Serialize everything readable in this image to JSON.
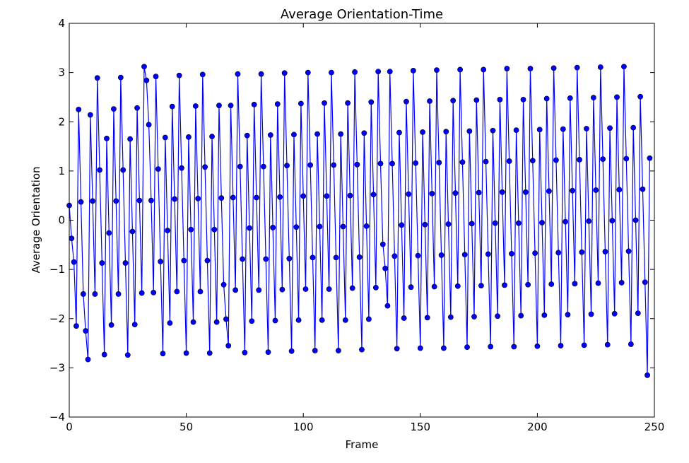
{
  "chart_data": {
    "type": "line",
    "title": "Average Orientation-Time",
    "xlabel": "Frame",
    "ylabel": "Average Orientation",
    "xlim": [
      0,
      250
    ],
    "ylim": [
      -4,
      4
    ],
    "xticks": [
      0,
      50,
      100,
      150,
      200,
      250
    ],
    "yticks": [
      -4,
      -3,
      -2,
      -1,
      0,
      1,
      2,
      3,
      4
    ],
    "xtick_labels": [
      "0",
      "50",
      "100",
      "150",
      "200",
      "250"
    ],
    "ytick_labels": [
      "−4",
      "−3",
      "−2",
      "−1",
      "0",
      "1",
      "2",
      "3",
      "4"
    ],
    "grid": false,
    "legend": "none",
    "colors": {
      "line": "#0000ff",
      "marker_fill": "#0000ff",
      "marker_edge": "#000000"
    },
    "series": [
      {
        "marker": "circle",
        "x": [
          0,
          1,
          2,
          3,
          4,
          5,
          6,
          7,
          8,
          9,
          10,
          11,
          12,
          13,
          14,
          15,
          16,
          17,
          18,
          19,
          20,
          21,
          22,
          23,
          24,
          25,
          26,
          27,
          28,
          29,
          30,
          31,
          32,
          33,
          34,
          35,
          36,
          37,
          38,
          39,
          40,
          41,
          42,
          43,
          44,
          45,
          46,
          47,
          48,
          49,
          50,
          51,
          52,
          53,
          54,
          55,
          56,
          57,
          58,
          59,
          60,
          61,
          62,
          63,
          64,
          65,
          66,
          67,
          68,
          69,
          70,
          71,
          72,
          73,
          74,
          75,
          76,
          77,
          78,
          79,
          80,
          81,
          82,
          83,
          84,
          85,
          86,
          87,
          88,
          89,
          90,
          91,
          92,
          93,
          94,
          95,
          96,
          97,
          98,
          99,
          100,
          101,
          102,
          103,
          104,
          105,
          106,
          107,
          108,
          109,
          110,
          111,
          112,
          113,
          114,
          115,
          116,
          117,
          118,
          119,
          120,
          121,
          122,
          123,
          124,
          125,
          126,
          127,
          128,
          129,
          130,
          131,
          132,
          133,
          134,
          135,
          136,
          137,
          138,
          139,
          140,
          141,
          142,
          143,
          144,
          145,
          146,
          147,
          148,
          149,
          150,
          151,
          152,
          153,
          154,
          155,
          156,
          157,
          158,
          159,
          160,
          161,
          162,
          163,
          164,
          165,
          166,
          167,
          168,
          169,
          170,
          171,
          172,
          173,
          174,
          175,
          176,
          177,
          178,
          179,
          180,
          181,
          182,
          183,
          184,
          185,
          186,
          187,
          188,
          189,
          190,
          191,
          192,
          193,
          194,
          195,
          196,
          197,
          198,
          199,
          200,
          201,
          202,
          203,
          204,
          205,
          206,
          207,
          208,
          209,
          210,
          211,
          212,
          213,
          214,
          215,
          216,
          217,
          218,
          219,
          220,
          221,
          222,
          223,
          224,
          225,
          226,
          227,
          228,
          229,
          230,
          231,
          232,
          233,
          234,
          235,
          236,
          237,
          238,
          239,
          240,
          241,
          242,
          243,
          244,
          245,
          246,
          247,
          248
        ],
        "y": [
          0.3,
          -0.37,
          -0.85,
          -2.15,
          2.25,
          0.37,
          -1.5,
          -2.25,
          -2.83,
          2.14,
          0.39,
          -1.5,
          2.89,
          1.02,
          -0.87,
          -2.73,
          1.66,
          -0.26,
          -2.13,
          2.26,
          0.39,
          -1.5,
          2.9,
          1.02,
          -0.87,
          -2.74,
          1.65,
          -0.23,
          -2.12,
          2.28,
          0.4,
          -1.48,
          3.12,
          2.84,
          1.94,
          0.4,
          -1.47,
          2.92,
          1.04,
          -0.84,
          -2.71,
          1.68,
          -0.21,
          -2.09,
          2.31,
          0.43,
          -1.45,
          2.94,
          1.06,
          -0.82,
          -2.7,
          1.69,
          -0.19,
          -2.07,
          2.32,
          0.44,
          -1.45,
          2.96,
          1.08,
          -0.82,
          -2.7,
          1.7,
          -0.19,
          -2.07,
          2.33,
          0.45,
          -1.31,
          -2.01,
          -2.55,
          2.33,
          0.46,
          -1.42,
          2.97,
          1.09,
          -0.79,
          -2.69,
          1.72,
          -0.16,
          -2.05,
          2.35,
          0.46,
          -1.42,
          2.97,
          1.09,
          -0.79,
          -2.68,
          1.73,
          -0.15,
          -2.04,
          2.36,
          0.47,
          -1.41,
          2.99,
          1.11,
          -0.78,
          -2.66,
          1.74,
          -0.14,
          -2.03,
          2.37,
          0.49,
          -1.4,
          3.0,
          1.12,
          -0.76,
          -2.65,
          1.75,
          -0.13,
          -2.03,
          2.38,
          0.49,
          -1.4,
          3.0,
          1.12,
          -0.76,
          -2.65,
          1.75,
          -0.13,
          -2.03,
          2.38,
          0.5,
          -1.38,
          3.01,
          1.13,
          -0.75,
          -2.63,
          1.77,
          -0.12,
          -2.01,
          2.4,
          0.52,
          -1.37,
          3.02,
          1.15,
          -0.49,
          -0.98,
          -1.74,
          3.02,
          1.15,
          -0.73,
          -2.61,
          1.78,
          -0.1,
          -1.99,
          2.41,
          0.53,
          -1.36,
          3.04,
          1.16,
          -0.72,
          -2.6,
          1.79,
          -0.09,
          -1.98,
          2.42,
          0.54,
          -1.35,
          3.05,
          1.17,
          -0.71,
          -2.6,
          1.8,
          -0.08,
          -1.97,
          2.43,
          0.55,
          -1.34,
          3.06,
          1.18,
          -0.7,
          -2.58,
          1.81,
          -0.07,
          -1.96,
          2.44,
          0.56,
          -1.33,
          3.06,
          1.19,
          -0.69,
          -2.57,
          1.82,
          -0.06,
          -1.95,
          2.45,
          0.57,
          -1.32,
          3.08,
          1.2,
          -0.68,
          -2.57,
          1.83,
          -0.06,
          -1.94,
          2.45,
          0.57,
          -1.31,
          3.08,
          1.21,
          -0.67,
          -2.56,
          1.84,
          -0.05,
          -1.93,
          2.47,
          0.59,
          -1.3,
          3.09,
          1.22,
          -0.66,
          -2.55,
          1.85,
          -0.03,
          -1.92,
          2.48,
          0.6,
          -1.29,
          3.1,
          1.23,
          -0.65,
          -2.54,
          1.86,
          -0.02,
          -1.91,
          2.49,
          0.61,
          -1.28,
          3.11,
          1.24,
          -0.64,
          -2.53,
          1.87,
          -0.01,
          -1.9,
          2.5,
          0.62,
          -1.27,
          3.12,
          1.25,
          -0.63,
          -2.52,
          1.88,
          0.0,
          -1.89,
          2.51,
          0.63,
          -1.26,
          -3.15,
          1.26
        ]
      }
    ]
  }
}
